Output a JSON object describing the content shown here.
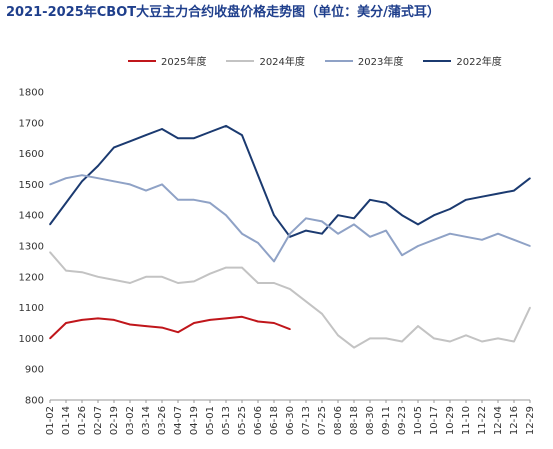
{
  "title": "2021-2025年CBOT大豆主力合约收盘价格走势图（单位：美分/蒲式耳）",
  "legend": [
    {
      "label": "2025年度",
      "color": "#c0161b"
    },
    {
      "label": "2024年度",
      "color": "#c3c3c3"
    },
    {
      "label": "2023年度",
      "color": "#8fa2c6"
    },
    {
      "label": "2022年度",
      "color": "#1b3a70"
    }
  ],
  "chart_data": {
    "type": "line",
    "ylim": [
      800,
      1800
    ],
    "yticks": [
      800,
      900,
      1000,
      1100,
      1200,
      1300,
      1400,
      1500,
      1600,
      1700,
      1800
    ],
    "categories": [
      "01-02",
      "01-14",
      "01-26",
      "02-07",
      "02-19",
      "03-02",
      "03-14",
      "03-26",
      "04-07",
      "04-19",
      "05-01",
      "05-13",
      "05-25",
      "06-06",
      "06-18",
      "06-30",
      "07-13",
      "07-25",
      "08-06",
      "08-18",
      "08-30",
      "09-11",
      "09-23",
      "10-05",
      "10-17",
      "10-29",
      "11-10",
      "11-22",
      "12-04",
      "12-16",
      "12-29"
    ],
    "series": [
      {
        "name": "2025年度",
        "color": "#c0161b",
        "values": [
          1000,
          1050,
          1060,
          1065,
          1060,
          1045,
          1040,
          1035,
          1020,
          1050,
          1060,
          1065,
          1070,
          1055,
          1050,
          1030,
          null,
          null,
          null,
          null,
          null,
          null,
          null,
          null,
          null,
          null,
          null,
          null,
          null,
          null,
          null
        ]
      },
      {
        "name": "2024年度",
        "color": "#c3c3c3",
        "values": [
          1280,
          1220,
          1215,
          1200,
          1190,
          1180,
          1200,
          1200,
          1180,
          1185,
          1210,
          1230,
          1230,
          1180,
          1180,
          1160,
          1120,
          1080,
          1010,
          970,
          1000,
          1000,
          990,
          1040,
          1000,
          990,
          1010,
          990,
          1000,
          990,
          1100
        ]
      },
      {
        "name": "2023年度",
        "color": "#8fa2c6",
        "values": [
          1500,
          1520,
          1530,
          1520,
          1510,
          1500,
          1480,
          1500,
          1450,
          1450,
          1440,
          1400,
          1340,
          1310,
          1250,
          1340,
          1390,
          1380,
          1340,
          1370,
          1330,
          1350,
          1270,
          1300,
          1320,
          1340,
          1330,
          1320,
          1340,
          1320,
          1300
        ]
      },
      {
        "name": "2022年度",
        "color": "#1b3a70",
        "values": [
          1370,
          1440,
          1510,
          1560,
          1620,
          1640,
          1660,
          1680,
          1650,
          1650,
          1670,
          1690,
          1660,
          1530,
          1400,
          1330,
          1350,
          1340,
          1400,
          1390,
          1450,
          1440,
          1400,
          1370,
          1400,
          1420,
          1450,
          1460,
          1470,
          1480,
          1520
        ]
      }
    ]
  }
}
